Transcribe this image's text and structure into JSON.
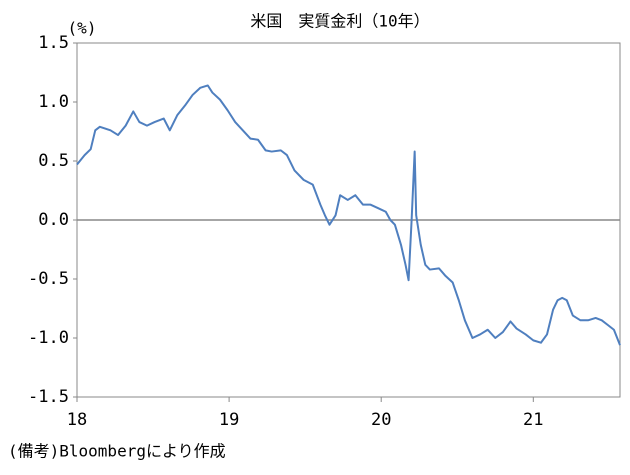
{
  "chart_data": {
    "type": "line",
    "title": "米国　実質金利（10年）",
    "y_unit_label": "(%)",
    "note": "(備考)Bloombergにより作成",
    "x": [
      18.0,
      18.05,
      18.09,
      18.12,
      18.15,
      18.22,
      18.27,
      18.32,
      18.37,
      18.41,
      18.46,
      18.51,
      18.57,
      18.61,
      18.66,
      18.71,
      18.76,
      18.81,
      18.86,
      18.89,
      18.94,
      18.99,
      19.04,
      19.09,
      19.14,
      19.19,
      19.24,
      19.28,
      19.34,
      19.38,
      19.43,
      19.49,
      19.55,
      19.6,
      19.63,
      19.66,
      19.7,
      19.73,
      19.78,
      19.83,
      19.88,
      19.93,
      19.98,
      20.03,
      20.06,
      20.09,
      20.13,
      20.16,
      20.18,
      20.2,
      20.22,
      20.23,
      20.26,
      20.29,
      20.32,
      20.38,
      20.42,
      20.47,
      20.51,
      20.55,
      20.6,
      20.65,
      20.7,
      20.75,
      20.8,
      20.85,
      20.89,
      20.95,
      21.0,
      21.05,
      21.09,
      21.13,
      21.16,
      21.19,
      21.22,
      21.26,
      21.31,
      21.36,
      21.41,
      21.45,
      21.49,
      21.53,
      21.57
    ],
    "series": [
      {
        "color": "#4f7fbf",
        "values": [
          0.47,
          0.55,
          0.6,
          0.76,
          0.79,
          0.76,
          0.72,
          0.8,
          0.92,
          0.83,
          0.8,
          0.83,
          0.86,
          0.76,
          0.89,
          0.97,
          1.06,
          1.12,
          1.14,
          1.08,
          1.02,
          0.93,
          0.83,
          0.76,
          0.69,
          0.68,
          0.59,
          0.58,
          0.59,
          0.55,
          0.42,
          0.34,
          0.3,
          0.13,
          0.04,
          -0.04,
          0.04,
          0.21,
          0.17,
          0.21,
          0.13,
          0.13,
          0.1,
          0.07,
          0,
          -0.04,
          -0.21,
          -0.38,
          -0.51,
          0,
          0.58,
          0.04,
          -0.21,
          -0.38,
          -0.42,
          -0.41,
          -0.47,
          -0.53,
          -0.68,
          -0.85,
          -1.0,
          -0.97,
          -0.93,
          -1.0,
          -0.95,
          -0.86,
          -0.92,
          -0.97,
          -1.02,
          -1.04,
          -0.97,
          -0.76,
          -0.68,
          -0.66,
          -0.68,
          -0.81,
          -0.85,
          -0.85,
          -0.83,
          -0.85,
          -0.89,
          -0.93,
          -1.06
        ]
      }
    ],
    "xlim": [
      18,
      21.57
    ],
    "xticks": [
      18,
      19,
      20,
      21
    ],
    "ylim": [
      -1.5,
      1.5
    ],
    "yticks": [
      1.5,
      {
        "value": 1,
        "label": "1.0"
      },
      0.5,
      {
        "value": 0,
        "label": "0.0"
      },
      -0.5,
      {
        "value": -1,
        "label": "-1.0"
      },
      -1.5
    ],
    "zero_line": true,
    "grid": false
  }
}
